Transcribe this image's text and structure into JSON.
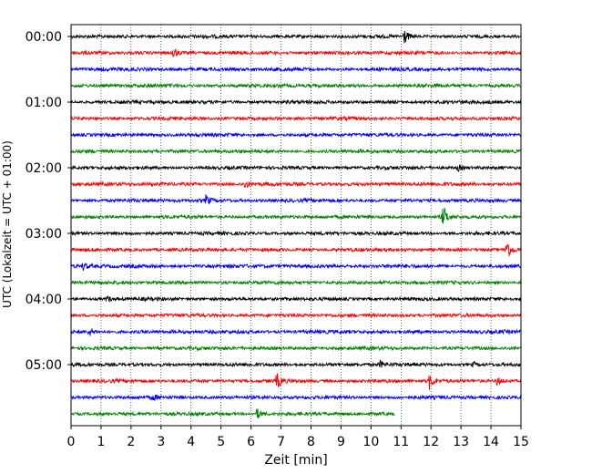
{
  "chart_data": {
    "type": "line",
    "subtype": "helicorder",
    "title": "",
    "xlabel": "Zeit  [min]",
    "ylabel": "UTC (Lokalzeit = UTC + 01:00)",
    "xlim": [
      0,
      15
    ],
    "x_ticks": [
      "0",
      "1",
      "2",
      "3",
      "4",
      "5",
      "6",
      "7",
      "8",
      "9",
      "10",
      "11",
      "12",
      "13",
      "14",
      "15"
    ],
    "y_ticks": [
      "00:00",
      "01:00",
      "02:00",
      "03:00",
      "04:00",
      "05:00"
    ],
    "grid": "vertical dotted lines at each minute",
    "trace_interval_minutes": 15,
    "colors": [
      "#000000",
      "#ff0000",
      "#0000ff",
      "#008000"
    ],
    "rows": [
      {
        "start": "00:00",
        "end_min": 15,
        "color": "#000000",
        "noise": 0.6,
        "events": [
          {
            "t": 11.1,
            "amp": 9
          }
        ]
      },
      {
        "start": "00:15",
        "end_min": 15,
        "color": "#ff0000",
        "noise": 0.6,
        "events": [
          {
            "t": 3.4,
            "amp": 7
          }
        ]
      },
      {
        "start": "00:30",
        "end_min": 15,
        "color": "#0000ff",
        "noise": 0.7,
        "events": []
      },
      {
        "start": "00:45",
        "end_min": 15,
        "color": "#008000",
        "noise": 0.7,
        "events": []
      },
      {
        "start": "01:00",
        "end_min": 15,
        "color": "#000000",
        "noise": 0.6,
        "events": []
      },
      {
        "start": "01:15",
        "end_min": 15,
        "color": "#ff0000",
        "noise": 0.6,
        "events": []
      },
      {
        "start": "01:30",
        "end_min": 15,
        "color": "#0000ff",
        "noise": 0.6,
        "events": []
      },
      {
        "start": "01:45",
        "end_min": 15,
        "color": "#008000",
        "noise": 0.6,
        "events": []
      },
      {
        "start": "02:00",
        "end_min": 15,
        "color": "#000000",
        "noise": 0.6,
        "events": [
          {
            "t": 12.9,
            "amp": 3
          }
        ]
      },
      {
        "start": "02:15",
        "end_min": 15,
        "color": "#ff0000",
        "noise": 0.7,
        "events": [
          {
            "t": 5.8,
            "amp": 4
          }
        ]
      },
      {
        "start": "02:30",
        "end_min": 15,
        "color": "#0000ff",
        "noise": 0.6,
        "events": [
          {
            "t": 4.5,
            "amp": 6
          }
        ]
      },
      {
        "start": "02:45",
        "end_min": 15,
        "color": "#008000",
        "noise": 0.6,
        "events": [
          {
            "t": 12.4,
            "amp": 13
          }
        ]
      },
      {
        "start": "03:00",
        "end_min": 15,
        "color": "#000000",
        "noise": 0.6,
        "events": []
      },
      {
        "start": "03:15",
        "end_min": 15,
        "color": "#ff0000",
        "noise": 0.6,
        "events": [
          {
            "t": 14.5,
            "amp": 16
          }
        ]
      },
      {
        "start": "03:30",
        "end_min": 15,
        "color": "#0000ff",
        "noise": 0.7,
        "events": [
          {
            "t": 0.4,
            "amp": 4
          }
        ]
      },
      {
        "start": "03:45",
        "end_min": 15,
        "color": "#008000",
        "noise": 0.6,
        "events": []
      },
      {
        "start": "04:00",
        "end_min": 15,
        "color": "#000000",
        "noise": 0.6,
        "events": [
          {
            "t": 1.2,
            "amp": 3
          }
        ]
      },
      {
        "start": "04:15",
        "end_min": 15,
        "color": "#ff0000",
        "noise": 0.6,
        "events": []
      },
      {
        "start": "04:30",
        "end_min": 15,
        "color": "#0000ff",
        "noise": 0.7,
        "events": [
          {
            "t": 0.6,
            "amp": 5
          }
        ]
      },
      {
        "start": "04:45",
        "end_min": 15,
        "color": "#008000",
        "noise": 0.6,
        "events": []
      },
      {
        "start": "05:00",
        "end_min": 15,
        "color": "#000000",
        "noise": 0.6,
        "events": [
          {
            "t": 10.3,
            "amp": 4
          },
          {
            "t": 13.4,
            "amp": 3
          }
        ]
      },
      {
        "start": "05:15",
        "end_min": 15,
        "color": "#ff0000",
        "noise": 0.6,
        "events": [
          {
            "t": 6.85,
            "amp": 9
          },
          {
            "t": 11.95,
            "amp": 9
          },
          {
            "t": 14.2,
            "amp": 5
          }
        ]
      },
      {
        "start": "05:30",
        "end_min": 15,
        "color": "#0000ff",
        "noise": 0.6,
        "events": [
          {
            "t": 2.7,
            "amp": 3
          }
        ]
      },
      {
        "start": "05:45",
        "end_min": 10.8,
        "color": "#008000",
        "noise": 0.6,
        "events": [
          {
            "t": 6.2,
            "amp": 6
          }
        ]
      }
    ]
  }
}
